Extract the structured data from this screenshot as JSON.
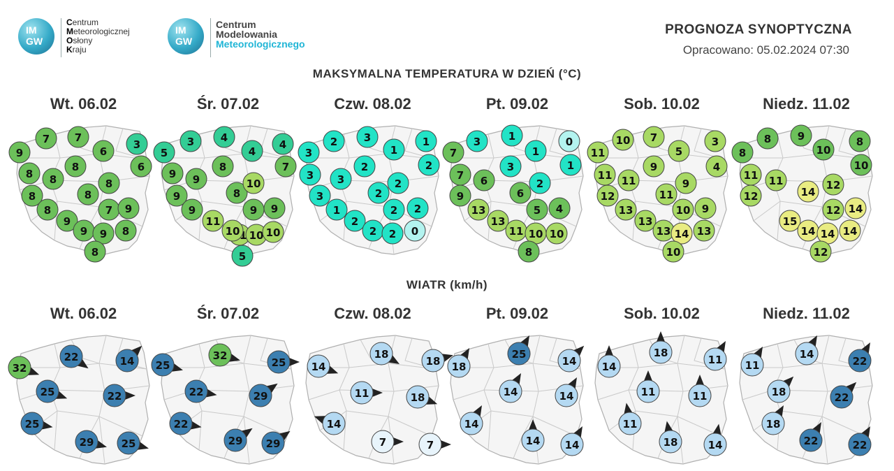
{
  "header": {
    "logo1": {
      "badge_top": "IM",
      "badge_bottom": "GW",
      "lines": [
        {
          "initial": "C",
          "rest": "entrum"
        },
        {
          "initial": "M",
          "rest": "eteorologicznej"
        },
        {
          "initial": "O",
          "rest": "słony"
        },
        {
          "initial": "K",
          "rest": "raju"
        }
      ]
    },
    "logo2": {
      "badge_top": "IM",
      "badge_bottom": "GW",
      "line1": "Centrum",
      "line2": "Modelowania",
      "line3": "Meteorologicznego"
    },
    "title": "PROGNOZA SYNOPTYCZNA",
    "issued": "Opracowano: 05.02.2024 07:30"
  },
  "temperature": {
    "title": "MAKSYMALNA TEMPERATURA W DZIEŃ (°C)",
    "colors": {
      "cyan_light": "#b3f3ef",
      "cyan": "#22e3c6",
      "seagreen": "#33cd95",
      "green": "#6cc05a",
      "lightgreen": "#a8d964",
      "yellow": "#e9ec82"
    },
    "days": [
      {
        "label": "Wt. 06.02",
        "values": [
          7,
          7,
          3,
          9,
          6,
          6,
          8,
          8,
          8,
          8,
          8,
          8,
          8,
          7,
          9,
          9,
          9,
          9,
          8,
          8
        ]
      },
      {
        "label": "Śr. 07.02",
        "values": [
          3,
          4,
          4,
          5,
          8,
          4,
          7,
          9,
          9,
          8,
          10,
          9,
          9,
          11,
          11,
          9,
          9,
          10,
          10,
          10,
          5
        ]
      },
      {
        "label": "Czw. 08.02",
        "values": [
          2,
          3,
          1,
          3,
          1,
          2,
          3,
          2,
          3,
          2,
          3,
          2,
          1,
          2,
          2,
          2,
          2,
          2,
          0
        ]
      },
      {
        "label": "Pt. 09.02",
        "values": [
          3,
          1,
          0,
          7,
          1,
          1,
          7,
          6,
          3,
          2,
          9,
          6,
          13,
          13,
          5,
          4,
          11,
          10,
          10,
          8
        ]
      },
      {
        "label": "Sob. 10.02",
        "values": [
          10,
          7,
          3,
          11,
          5,
          4,
          9,
          11,
          11,
          9,
          12,
          11,
          13,
          10,
          9,
          13,
          13,
          14,
          13,
          10
        ]
      },
      {
        "label": "Niedz. 11.02",
        "values": [
          8,
          9,
          8,
          8,
          10,
          10,
          11,
          11,
          14,
          12,
          12,
          12,
          14,
          15,
          14,
          14,
          14,
          12
        ]
      }
    ]
  },
  "wind": {
    "title": "WIATR (km/h)",
    "colors": {
      "green": "#6cc05a",
      "dark": "#3c7fb0",
      "mid": "#7fb8e0",
      "light": "#b4d9f2",
      "pale": "#e8f4fb"
    },
    "days": [
      {
        "label": "Wt. 06.02",
        "values": [
          22,
          14,
          32,
          25,
          22,
          25,
          29,
          25
        ]
      },
      {
        "label": "Śr. 07.02",
        "values": [
          32,
          25,
          25,
          22,
          29,
          22,
          29,
          29
        ]
      },
      {
        "label": "Czw. 08.02",
        "values": [
          18,
          18,
          14,
          11,
          18,
          14,
          7,
          7
        ]
      },
      {
        "label": "Pt. 09.02",
        "values": [
          25,
          18,
          14,
          14,
          14,
          14,
          14,
          14
        ]
      },
      {
        "label": "Sob. 10.02",
        "values": [
          18,
          14,
          11,
          11,
          11,
          11,
          18,
          14
        ]
      },
      {
        "label": "Niedz. 11.02",
        "values": [
          14,
          11,
          22,
          18,
          22,
          18,
          22,
          22
        ]
      }
    ]
  }
}
